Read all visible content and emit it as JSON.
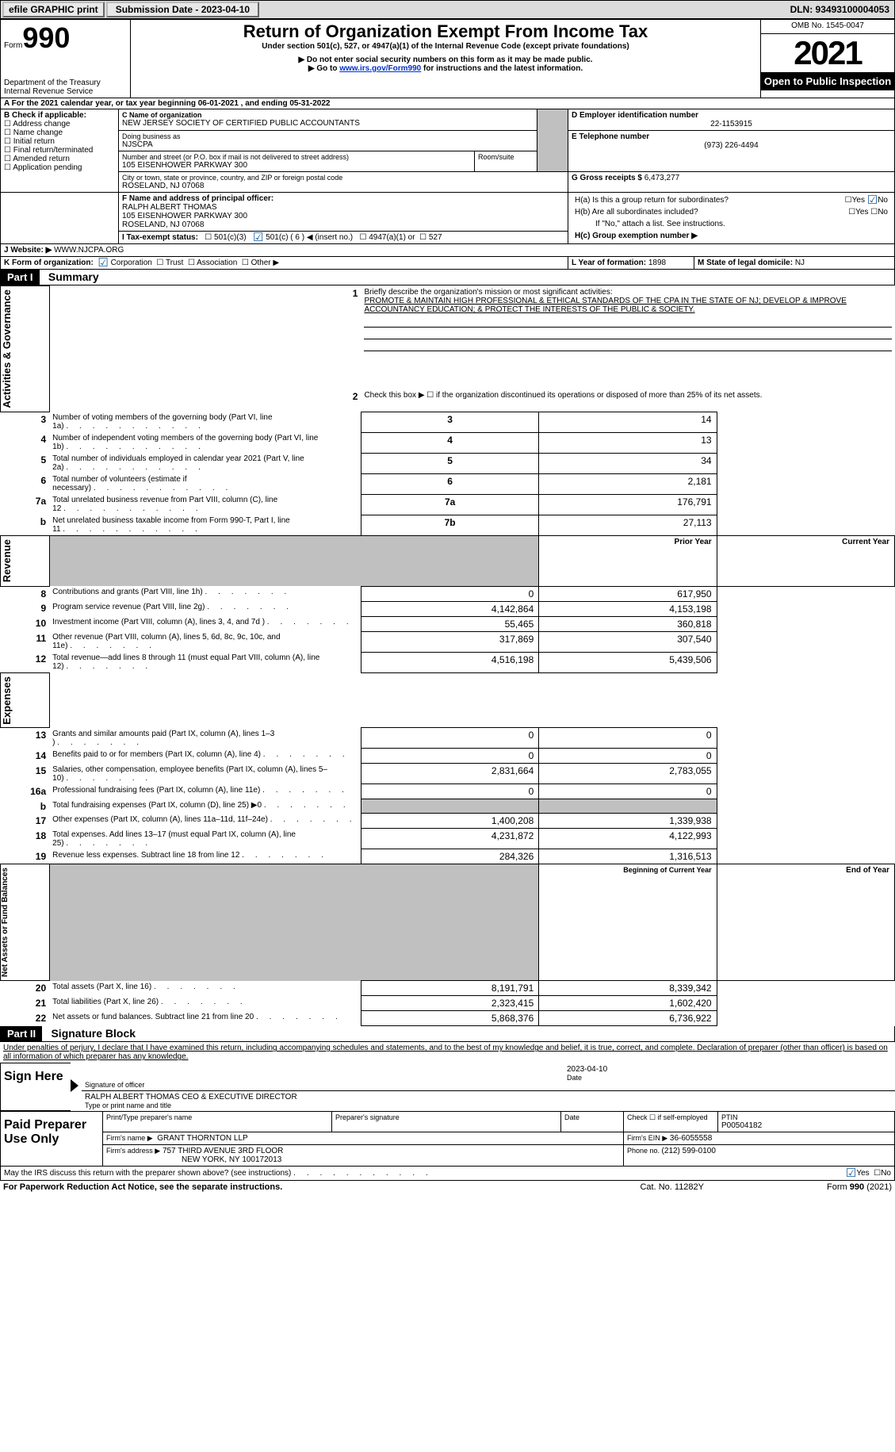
{
  "topbar": {
    "efile_label": "efile GRAPHIC print",
    "submission_label": "Submission Date - 2023-04-10",
    "dln": "DLN: 93493100004053"
  },
  "header": {
    "form_word": "Form",
    "form_num": "990",
    "dept": "Department of the Treasury",
    "irs": "Internal Revenue Service",
    "title": "Return of Organization Exempt From Income Tax",
    "subtitle": "Under section 501(c), 527, or 4947(a)(1) of the Internal Revenue Code (except private foundations)",
    "note1": "▶ Do not enter social security numbers on this form as it may be made public.",
    "note2_pre": "▶ Go to ",
    "note2_link": "www.irs.gov/Form990",
    "note2_post": " for instructions and the latest information.",
    "omb": "OMB No. 1545-0047",
    "year": "2021",
    "open": "Open to Public Inspection"
  },
  "periodA": {
    "text_pre": "A For the 2021 calendar year, or tax year beginning ",
    "begin": "06-01-2021",
    "mid": "   , and ending ",
    "end": "05-31-2022"
  },
  "boxB": {
    "hdr": "B Check if applicable:",
    "items": [
      "Address change",
      "Name change",
      "Initial return",
      "Final return/terminated",
      "Amended return",
      "Application pending"
    ]
  },
  "boxC": {
    "name_lbl": "C Name of organization",
    "name": "NEW JERSEY SOCIETY OF CERTIFIED PUBLIC ACCOUNTANTS",
    "dba_lbl": "Doing business as",
    "dba": "NJSCPA",
    "street_lbl": "Number and street (or P.O. box if mail is not delivered to street address)",
    "room_lbl": "Room/suite",
    "street": "105 EISENHOWER PARKWAY 300",
    "city_lbl": "City or town, state or province, country, and ZIP or foreign postal code",
    "city": "ROSELAND, NJ  07068"
  },
  "boxD": {
    "lbl": "D Employer identification number",
    "val": "22-1153915"
  },
  "boxE": {
    "lbl": "E Telephone number",
    "val": "(973) 226-4494"
  },
  "boxG": {
    "lbl": "G Gross receipts $",
    "val": "6,473,277"
  },
  "boxF": {
    "lbl": "F  Name and address of principal officer:",
    "name": "RALPH ALBERT THOMAS",
    "addr1": "105 EISENHOWER PARKWAY 300",
    "addr2": "ROSELAND, NJ  07068"
  },
  "boxH": {
    "a": "H(a)  Is this a group return for subordinates?",
    "b": "H(b)  Are all subordinates included?",
    "b_note": "If \"No,\" attach a list. See instructions.",
    "c": "H(c)  Group exemption number ▶",
    "yes": "Yes",
    "no": "No"
  },
  "boxI": {
    "lbl": "I   Tax-exempt status:",
    "c3": "501(c)(3)",
    "c": "501(c) ( 6 ) ◀ (insert no.)",
    "a1": "4947(a)(1) or",
    "s527": "527"
  },
  "boxJ": {
    "lbl": "J   Website: ▶",
    "val": " WWW.NJCPA.ORG"
  },
  "boxK": {
    "lbl": "K Form of organization:",
    "corp": "Corporation",
    "trust": "Trust",
    "assoc": "Association",
    "other": "Other ▶"
  },
  "boxL": {
    "lbl": "L Year of formation: ",
    "val": "1898"
  },
  "boxM": {
    "lbl": "M State of legal domicile: ",
    "val": "NJ"
  },
  "part1": {
    "hdr": "Part I",
    "title": "Summary",
    "side_ag": "Activities & Governance",
    "side_rev": "Revenue",
    "side_exp": "Expenses",
    "side_net": "Net Assets or Fund Balances",
    "l1_lbl": "Briefly describe the organization's mission or most significant activities:",
    "l1_val": "PROMOTE & MAINTAIN HIGH PROFESSIONAL & ETHICAL STANDARDS OF THE CPA IN THE STATE OF NJ; DEVELOP & IMPROVE ACCOUNTANCY EDUCATION; & PROTECT THE INTERESTS OF THE PUBLIC & SOCIETY.",
    "l2": "Check this box ▶ ☐ if the organization discontinued its operations or disposed of more than 25% of its net assets.",
    "rows_ag": [
      {
        "n": "3",
        "d": "Number of voting members of the governing body (Part VI, line 1a)",
        "box": "3",
        "v": "14"
      },
      {
        "n": "4",
        "d": "Number of independent voting members of the governing body (Part VI, line 1b)",
        "box": "4",
        "v": "13"
      },
      {
        "n": "5",
        "d": "Total number of individuals employed in calendar year 2021 (Part V, line 2a)",
        "box": "5",
        "v": "34"
      },
      {
        "n": "6",
        "d": "Total number of volunteers (estimate if necessary)",
        "box": "6",
        "v": "2,181"
      },
      {
        "n": "7a",
        "d": "Total unrelated business revenue from Part VIII, column (C), line 12",
        "box": "7a",
        "v": "176,791"
      },
      {
        "n": "b",
        "d": "Net unrelated business taxable income from Form 990-T, Part I, line 11",
        "box": "7b",
        "v": "27,113"
      }
    ],
    "py_hdr": "Prior Year",
    "cy_hdr": "Current Year",
    "rows_rev": [
      {
        "n": "8",
        "d": "Contributions and grants (Part VIII, line 1h)",
        "py": "0",
        "cy": "617,950"
      },
      {
        "n": "9",
        "d": "Program service revenue (Part VIII, line 2g)",
        "py": "4,142,864",
        "cy": "4,153,198"
      },
      {
        "n": "10",
        "d": "Investment income (Part VIII, column (A), lines 3, 4, and 7d )",
        "py": "55,465",
        "cy": "360,818"
      },
      {
        "n": "11",
        "d": "Other revenue (Part VIII, column (A), lines 5, 6d, 8c, 9c, 10c, and 11e)",
        "py": "317,869",
        "cy": "307,540"
      },
      {
        "n": "12",
        "d": "Total revenue—add lines 8 through 11 (must equal Part VIII, column (A), line 12)",
        "py": "4,516,198",
        "cy": "5,439,506"
      }
    ],
    "rows_exp": [
      {
        "n": "13",
        "d": "Grants and similar amounts paid (Part IX, column (A), lines 1–3 )",
        "py": "0",
        "cy": "0"
      },
      {
        "n": "14",
        "d": "Benefits paid to or for members (Part IX, column (A), line 4)",
        "py": "0",
        "cy": "0"
      },
      {
        "n": "15",
        "d": "Salaries, other compensation, employee benefits (Part IX, column (A), lines 5–10)",
        "py": "2,831,664",
        "cy": "2,783,055"
      },
      {
        "n": "16a",
        "d": "Professional fundraising fees (Part IX, column (A), line 11e)",
        "py": "0",
        "cy": "0"
      },
      {
        "n": "b",
        "d": "Total fundraising expenses (Part IX, column (D), line 25) ▶0",
        "py": "GREY",
        "cy": "GREY"
      },
      {
        "n": "17",
        "d": "Other expenses (Part IX, column (A), lines 11a–11d, 11f–24e)",
        "py": "1,400,208",
        "cy": "1,339,938"
      },
      {
        "n": "18",
        "d": "Total expenses. Add lines 13–17 (must equal Part IX, column (A), line 25)",
        "py": "4,231,872",
        "cy": "4,122,993"
      },
      {
        "n": "19",
        "d": "Revenue less expenses. Subtract line 18 from line 12",
        "py": "284,326",
        "cy": "1,316,513"
      }
    ],
    "boy_hdr": "Beginning of Current Year",
    "eoy_hdr": "End of Year",
    "rows_net": [
      {
        "n": "20",
        "d": "Total assets (Part X, line 16)",
        "py": "8,191,791",
        "cy": "8,339,342"
      },
      {
        "n": "21",
        "d": "Total liabilities (Part X, line 26)",
        "py": "2,323,415",
        "cy": "1,602,420"
      },
      {
        "n": "22",
        "d": "Net assets or fund balances. Subtract line 21 from line 20",
        "py": "5,868,376",
        "cy": "6,736,922"
      }
    ]
  },
  "part2": {
    "hdr": "Part II",
    "title": "Signature Block",
    "decl": "Under penalties of perjury, I declare that I have examined this return, including accompanying schedules and statements, and to the best of my knowledge and belief, it is true, correct, and complete. Declaration of preparer (other than officer) is based on all information of which preparer has any knowledge.",
    "sign_here": "Sign Here",
    "sig_officer": "Signature of officer",
    "sig_date": "2023-04-10",
    "date_lbl": "Date",
    "officer_name": "RALPH ALBERT THOMAS CEO & EXECUTIVE DIRECTOR",
    "type_name": "Type or print name and title",
    "paid": "Paid Preparer Use Only",
    "prep_name_lbl": "Print/Type preparer's name",
    "prep_sig_lbl": "Preparer's signature",
    "check_if": "Check ☐ if self-employed",
    "ptin_lbl": "PTIN",
    "ptin": "P00504182",
    "firm_name_lbl": "Firm's name    ▶",
    "firm_name": "GRANT THORNTON LLP",
    "firm_ein_lbl": "Firm's EIN ▶",
    "firm_ein": "36-6055558",
    "firm_addr_lbl": "Firm's address ▶",
    "firm_addr1": "757 THIRD AVENUE 3RD FLOOR",
    "firm_addr2": "NEW YORK, NY  100172013",
    "phone_lbl": "Phone no. ",
    "phone": "(212) 599-0100",
    "may_irs": "May the IRS discuss this return with the preparer shown above? (see instructions)",
    "yes": "Yes",
    "no": "No"
  },
  "footer": {
    "pra": "For Paperwork Reduction Act Notice, see the separate instructions.",
    "cat": "Cat. No. 11282Y",
    "form": "Form 990 (2021)"
  },
  "colors": {
    "link": "#0030cc",
    "check": "#1a5c9c"
  }
}
